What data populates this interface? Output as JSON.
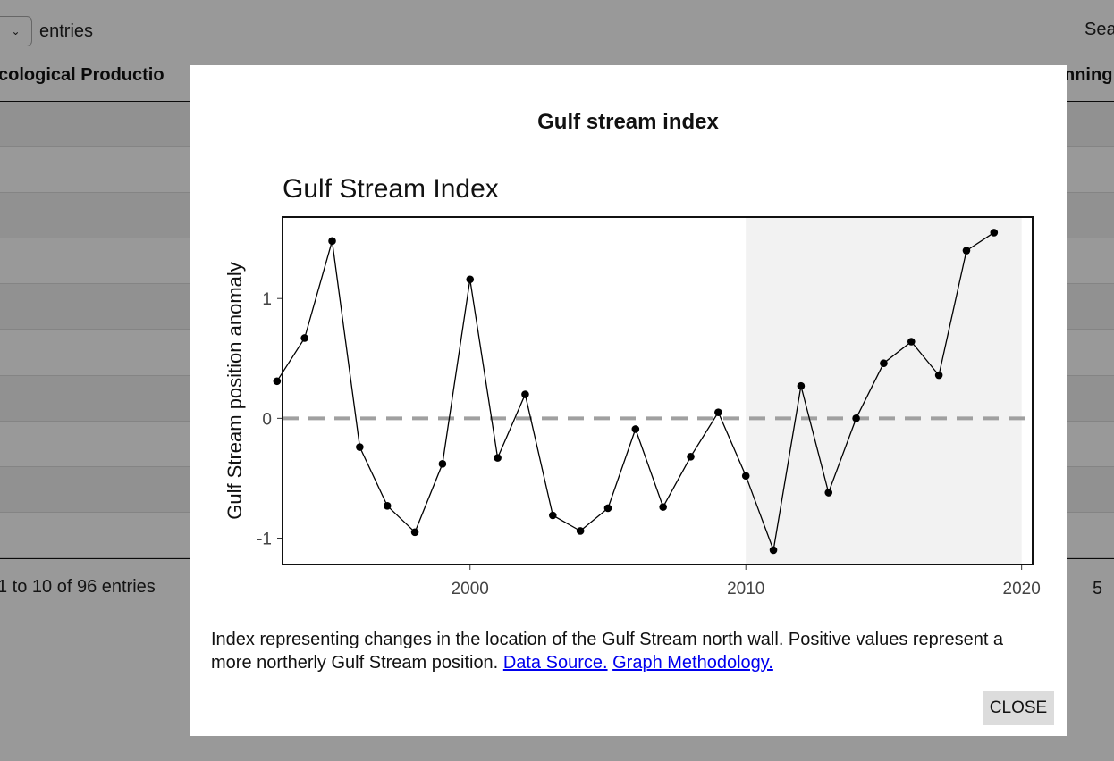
{
  "background": {
    "length_label": "entries",
    "length_select_icon": "chevron-down-icon",
    "search_label": "Sea",
    "column_headers": [
      "cological Productio",
      "nning"
    ],
    "row_count": 10,
    "info_text": "1 to 10 of 96 entries",
    "page_number": "5"
  },
  "modal": {
    "title": "Gulf stream index",
    "description": "Index representing changes in the location of the Gulf Stream north wall. Positive values represent a more northerly Gulf Stream position.",
    "links": {
      "data_source": "Data Source.",
      "graph_methodology": "Graph Methodology."
    },
    "close_label": "CLOSE"
  },
  "chart_data": {
    "type": "line",
    "title": "Gulf Stream Index",
    "xlabel": "",
    "ylabel": "Gulf Stream position anomaly",
    "xlim": [
      1993.2,
      2020.4
    ],
    "ylim": [
      -1.22,
      1.68
    ],
    "x_ticks": [
      2000,
      2010,
      2020
    ],
    "y_ticks": [
      -1,
      0,
      1
    ],
    "reference_line": {
      "y": 0,
      "style": "dashed",
      "color": "#a0a0a0"
    },
    "shaded_region": {
      "x_start": 2010,
      "x_end": 2020,
      "color": "#f2f2f2"
    },
    "grid": false,
    "legend": "none",
    "series": [
      {
        "color": "#000000",
        "x": [
          1993,
          1994,
          1995,
          1996,
          1997,
          1998,
          1999,
          2000,
          2001,
          2002,
          2003,
          2004,
          2005,
          2006,
          2007,
          2008,
          2009,
          2010,
          2011,
          2012,
          2013,
          2014,
          2015,
          2016,
          2017,
          2018,
          2019
        ],
        "y": [
          0.31,
          0.67,
          1.48,
          -0.24,
          -0.73,
          -0.95,
          -0.38,
          1.16,
          -0.33,
          0.2,
          -0.81,
          -0.94,
          -0.75,
          -0.09,
          -0.74,
          -0.32,
          0.05,
          -0.48,
          -1.1,
          0.27,
          -0.62,
          0.0,
          0.46,
          0.64,
          0.36,
          1.4,
          1.55
        ]
      }
    ]
  }
}
